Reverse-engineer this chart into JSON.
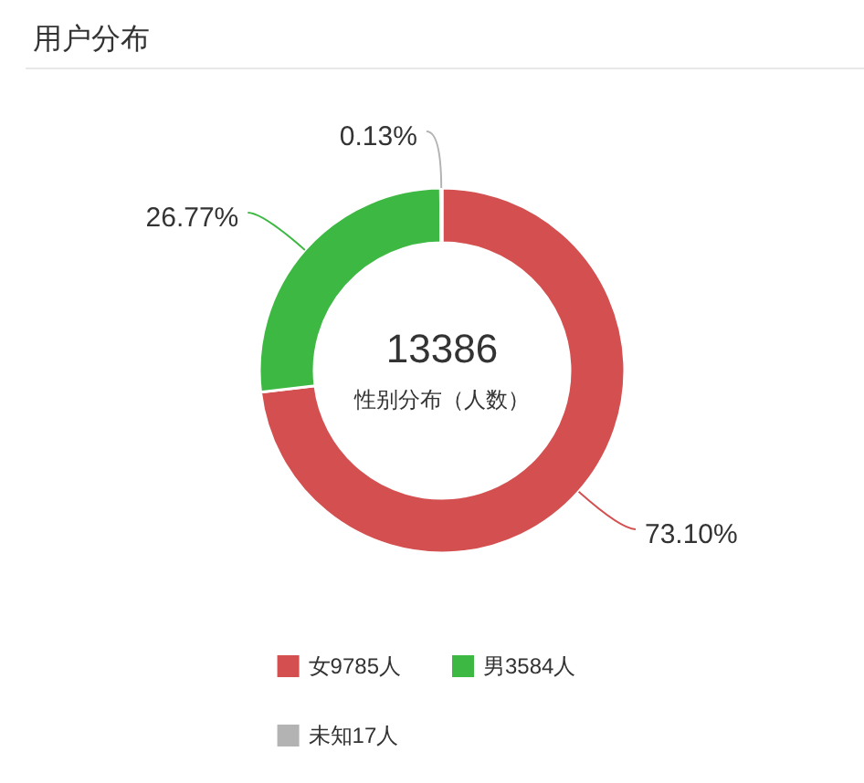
{
  "chart_data": {
    "type": "donut",
    "title": "用户分布",
    "categories": [
      "女9785人",
      "男3584人",
      "未知17人"
    ],
    "values": [
      73.1,
      26.77,
      0.13
    ],
    "colors": [
      "#d45050",
      "#3db843",
      "#b3b3b3"
    ],
    "value_labels": [
      "73.10%",
      "26.77%",
      "0.13%"
    ],
    "annotations": [
      "13386",
      "性别分布（人数）"
    ],
    "legend": "bottom"
  }
}
